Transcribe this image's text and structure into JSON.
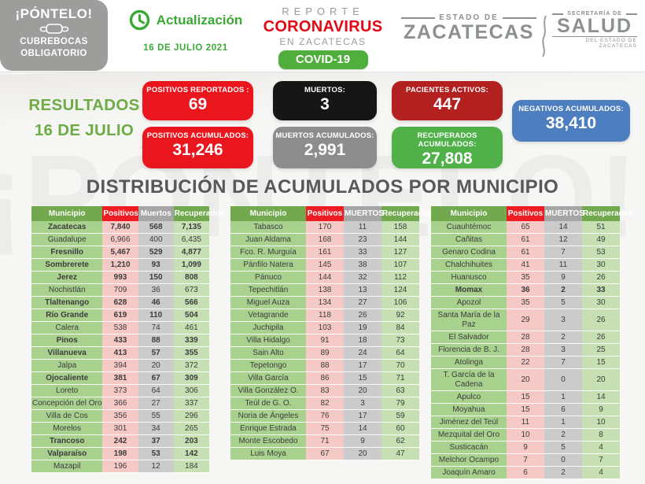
{
  "colors": {
    "accent_green": "#3aaa35",
    "results_green": "#6cab45",
    "title_gray": "#57585a",
    "brand_red": "#e30713",
    "covid_pill_green": "#4fae3c",
    "logo_gray": "#8d9091",
    "badge_gray": "#9d9d9c",
    "header_green": "#72a94f",
    "header_red": "#ee1d23",
    "header_gray": "#a6a6a6",
    "cell_green_dark": "#a9d18e",
    "cell_pink": "#f5c9c6",
    "cell_gray": "#cbcbcb",
    "cell_green_light": "#c6e0b4"
  },
  "watermark": {
    "text": "¡PÓNTELO!"
  },
  "badge": {
    "title": "¡PÓNTELO!",
    "line1": "CUBREBOCAS",
    "line2": "OBLIGATORIO"
  },
  "update": {
    "label": "Actualización",
    "date": "16 DE JULIO 2021"
  },
  "brand": {
    "report": "REPORTE",
    "coronavirus": "CORONAVIRUS",
    "subtitle": "EN ZACATECAS",
    "covid": "COVID-19"
  },
  "logos": {
    "estado_kicker": "ESTADO DE",
    "estado_name": "ZACATECAS",
    "salud_kicker": "SECRETARÍA DE",
    "salud_name": "SALUD",
    "salud_tagline": "DEL ESTADO DE ZACATECAS"
  },
  "results": {
    "line1": "RESULTADOS",
    "line2": "16 DE JULIO"
  },
  "stats": {
    "positivos_reportados": {
      "label": "POSITIVOS REPORTADOS :",
      "value": "69",
      "color": "#e9161d"
    },
    "muertos": {
      "label": "MUERTOS:",
      "value": "3",
      "color": "#161616"
    },
    "pacientes_activos": {
      "label": "PACIENTES ACTIVOS:",
      "value": "447",
      "color": "#b2201f"
    },
    "negativos_acumulados": {
      "label": "NEGATIVOS ACUMULADOS:",
      "value": "38,410",
      "color": "#4d7ec0"
    },
    "positivos_acumulados": {
      "label": "POSITIVOS ACUMULADOS:",
      "value": "31,246",
      "color": "#e9161d"
    },
    "muertos_acumulados": {
      "label": "MUERTOS  ACUMULADOS:",
      "value": "2,991",
      "color": "#8d8d8d"
    },
    "recuperados_acumulados": {
      "label": "RECUPERADOS ACUMULADOS:",
      "value": "27,808",
      "color": "#4fb148"
    }
  },
  "section_title": "DISTRIBUCIÓN DE ACUMULADOS POR MUNICIPIO",
  "tables": [
    {
      "headers": [
        "Municipio",
        "Positivos",
        "Muertos",
        "Recuperados"
      ],
      "rows": [
        {
          "cells": [
            "Zacatecas",
            "7,840",
            "568",
            "7,135"
          ],
          "bold": true
        },
        {
          "cells": [
            "Guadalupe",
            "6,966",
            "400",
            "6,435"
          ],
          "bold": false
        },
        {
          "cells": [
            "Fresnillo",
            "5,467",
            "529",
            "4,877"
          ],
          "bold": true
        },
        {
          "cells": [
            "Sombrerete",
            "1,210",
            "93",
            "1,099"
          ],
          "bold": true
        },
        {
          "cells": [
            "Jerez",
            "993",
            "150",
            "808"
          ],
          "bold": true
        },
        {
          "cells": [
            "Nochistlán",
            "709",
            "36",
            "673"
          ],
          "bold": false
        },
        {
          "cells": [
            "Tlaltenango",
            "628",
            "46",
            "566"
          ],
          "bold": true
        },
        {
          "cells": [
            "Río Grande",
            "619",
            "110",
            "504"
          ],
          "bold": true
        },
        {
          "cells": [
            "Calera",
            "538",
            "74",
            "461"
          ],
          "bold": false
        },
        {
          "cells": [
            "Pinos",
            "433",
            "88",
            "339"
          ],
          "bold": true
        },
        {
          "cells": [
            "Villanueva",
            "413",
            "57",
            "355"
          ],
          "bold": true
        },
        {
          "cells": [
            "Jalpa",
            "394",
            "20",
            "372"
          ],
          "bold": false
        },
        {
          "cells": [
            "Ojocaliente",
            "381",
            "67",
            "309"
          ],
          "bold": true
        },
        {
          "cells": [
            "Loreto",
            "373",
            "64",
            "306"
          ],
          "bold": false
        },
        {
          "cells": [
            "Concepción del Oro",
            "366",
            "27",
            "337"
          ],
          "bold": false
        },
        {
          "cells": [
            "Villa de Cos",
            "356",
            "55",
            "296"
          ],
          "bold": false
        },
        {
          "cells": [
            "Morelos",
            "301",
            "34",
            "265"
          ],
          "bold": false
        },
        {
          "cells": [
            "Trancoso",
            "242",
            "37",
            "203"
          ],
          "bold": true
        },
        {
          "cells": [
            "Valparaíso",
            "198",
            "53",
            "142"
          ],
          "bold": true
        },
        {
          "cells": [
            "Mazapil",
            "196",
            "12",
            "184"
          ],
          "bold": false
        }
      ]
    },
    {
      "headers": [
        "Municipio",
        "Positivos",
        "MUERTOS",
        "Recuperados"
      ],
      "rows": [
        {
          "cells": [
            "Tabasco",
            "170",
            "11",
            "158"
          ],
          "bold": false
        },
        {
          "cells": [
            "Juan Aldama",
            "168",
            "23",
            "144"
          ],
          "bold": false
        },
        {
          "cells": [
            "Fco. R. Murguía",
            "161",
            "33",
            "127"
          ],
          "bold": false
        },
        {
          "cells": [
            "Pánfilo Natera",
            "145",
            "38",
            "107"
          ],
          "bold": false
        },
        {
          "cells": [
            "Pánuco",
            "144",
            "32",
            "112"
          ],
          "bold": false
        },
        {
          "cells": [
            "Tepechitlán",
            "138",
            "13",
            "124"
          ],
          "bold": false
        },
        {
          "cells": [
            "Miguel Auza",
            "134",
            "27",
            "106"
          ],
          "bold": false
        },
        {
          "cells": [
            "Vetagrande",
            "118",
            "26",
            "92"
          ],
          "bold": false
        },
        {
          "cells": [
            "Juchipila",
            "103",
            "19",
            "84"
          ],
          "bold": false
        },
        {
          "cells": [
            "Villa Hidalgo",
            "91",
            "18",
            "73"
          ],
          "bold": false
        },
        {
          "cells": [
            "Sain Alto",
            "89",
            "24",
            "64"
          ],
          "bold": false
        },
        {
          "cells": [
            "Tepetongo",
            "88",
            "17",
            "70"
          ],
          "bold": false
        },
        {
          "cells": [
            "Villa García",
            "86",
            "15",
            "71"
          ],
          "bold": false
        },
        {
          "cells": [
            "Villa González O.",
            "83",
            "20",
            "63"
          ],
          "bold": false
        },
        {
          "cells": [
            "Teúl de G. O.",
            "82",
            "3",
            "79"
          ],
          "bold": false
        },
        {
          "cells": [
            "Noria de Ángeles",
            "76",
            "17",
            "59"
          ],
          "bold": false
        },
        {
          "cells": [
            "Enrique Estrada",
            "75",
            "14",
            "60"
          ],
          "bold": false
        },
        {
          "cells": [
            "Monte Escobedo",
            "71",
            "9",
            "62"
          ],
          "bold": false
        },
        {
          "cells": [
            "Luis Moya",
            "67",
            "20",
            "47"
          ],
          "bold": false
        }
      ]
    },
    {
      "headers": [
        "Municipio",
        "Positivos",
        "MUERTOS",
        "Recuperados"
      ],
      "rows": [
        {
          "cells": [
            "Cuauhtémoc",
            "65",
            "14",
            "51"
          ],
          "bold": false
        },
        {
          "cells": [
            "Cañitas",
            "61",
            "12",
            "49"
          ],
          "bold": false
        },
        {
          "cells": [
            "Genaro Codina",
            "61",
            "7",
            "53"
          ],
          "bold": false
        },
        {
          "cells": [
            "Chalchihuites",
            "41",
            "11",
            "30"
          ],
          "bold": false
        },
        {
          "cells": [
            "Huanusco",
            "35",
            "9",
            "26"
          ],
          "bold": false
        },
        {
          "cells": [
            "Momax",
            "36",
            "2",
            "33"
          ],
          "bold": true
        },
        {
          "cells": [
            "Apozol",
            "35",
            "5",
            "30"
          ],
          "bold": false
        },
        {
          "cells": [
            "Santa María de la Paz",
            "29",
            "3",
            "26"
          ],
          "bold": false
        },
        {
          "cells": [
            "El Salvador",
            "28",
            "2",
            "26"
          ],
          "bold": false
        },
        {
          "cells": [
            "Florencia de B. J.",
            "28",
            "3",
            "25"
          ],
          "bold": false
        },
        {
          "cells": [
            "Atolinga",
            "22",
            "7",
            "15"
          ],
          "bold": false
        },
        {
          "cells": [
            "T. García de la Cadena",
            "20",
            "0",
            "20"
          ],
          "bold": false
        },
        {
          "cells": [
            "Apulco",
            "15",
            "1",
            "14"
          ],
          "bold": false
        },
        {
          "cells": [
            "Moyahua",
            "15",
            "6",
            "9"
          ],
          "bold": false
        },
        {
          "cells": [
            "Jiménez del Teúl",
            "11",
            "1",
            "10"
          ],
          "bold": false
        },
        {
          "cells": [
            "Mezquital del Oro",
            "10",
            "2",
            "8"
          ],
          "bold": false
        },
        {
          "cells": [
            "Susticacán",
            "9",
            "5",
            "4"
          ],
          "bold": false
        },
        {
          "cells": [
            "Melchor Ocampo",
            "7",
            "0",
            "7"
          ],
          "bold": false
        },
        {
          "cells": [
            "Joaquín Amaro",
            "6",
            "2",
            "4"
          ],
          "bold": false
        }
      ]
    }
  ]
}
